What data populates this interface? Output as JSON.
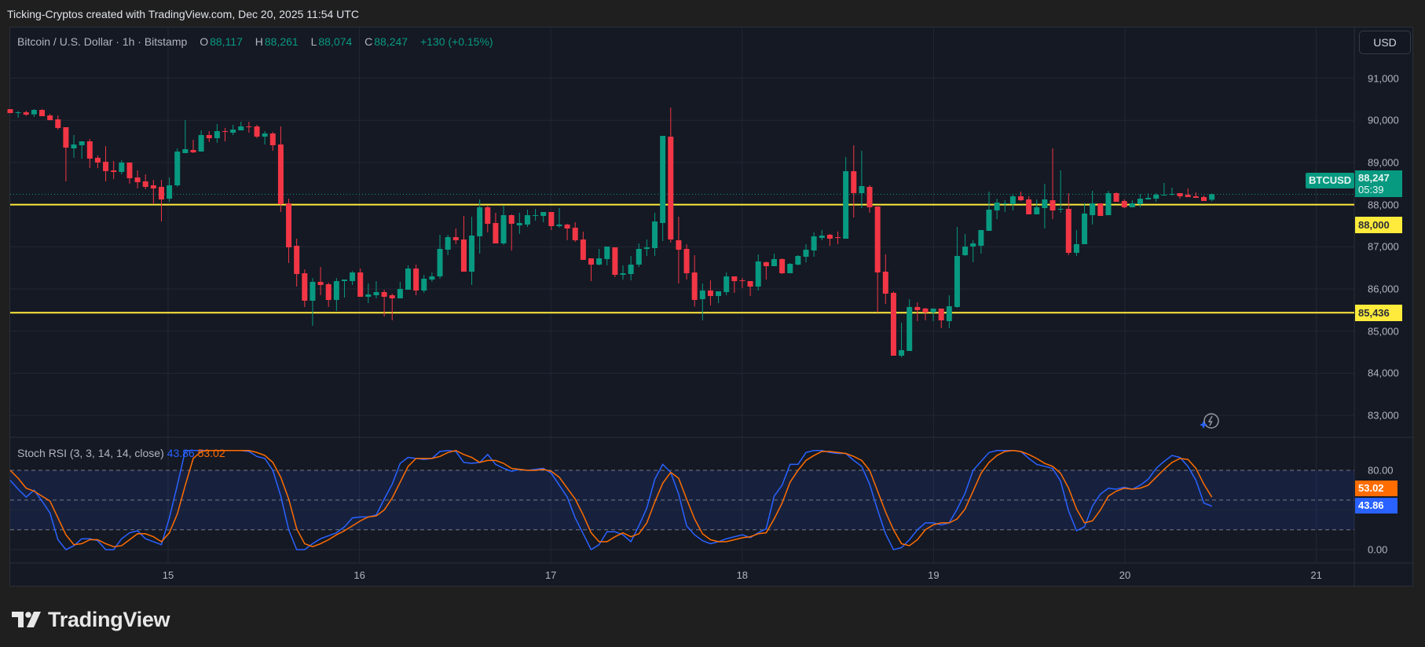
{
  "credit": "Ticking-Cryptos created with TradingView.com, Dec 20, 2025 11:54 UTC",
  "legend": {
    "symbol": "Bitcoin / U.S. Dollar · 1h · Bitstamp",
    "o_label": "O",
    "o": "88,117",
    "h_label": "H",
    "h": "88,261",
    "l_label": "L",
    "l": "88,074",
    "c_label": "C",
    "c": "88,247",
    "change": "+130 (+0.15%)"
  },
  "currency_button": "USD",
  "colors": {
    "up": "#089981",
    "down": "#f23645",
    "level": "#ffeb3b",
    "stoch_k": "#2962ff",
    "stoch_d": "#ff6d00"
  },
  "price_axis": {
    "ticks": [
      "91,000",
      "90,000",
      "89,000",
      "88,000",
      "87,000",
      "86,000",
      "85,000",
      "84,000",
      "83,000"
    ],
    "tick_values": [
      91000,
      90000,
      89000,
      88000,
      87000,
      86000,
      85000,
      84000,
      83000
    ]
  },
  "time_axis": {
    "ticks": [
      "15",
      "16",
      "17",
      "18",
      "19",
      "20",
      "21"
    ]
  },
  "last_price": {
    "symbol_tag": "BTCUSD",
    "price": "88,247",
    "countdown": "05:39",
    "value": 88247
  },
  "levels": [
    {
      "label": "88,000",
      "value": 88000
    },
    {
      "label": "85,436",
      "value": 85436
    }
  ],
  "stoch_rsi": {
    "title": "Stoch RSI (3, 3, 14, 14, close)",
    "k_value": "43.86",
    "d_value": "53.02",
    "axis_ticks": [
      "80.00",
      "0.00"
    ],
    "bands": [
      80,
      50,
      20
    ]
  },
  "watermark": "TradingView",
  "icons": {
    "bolt": "lightning-bolt-icon",
    "logo": "tradingview-logo-icon"
  },
  "chart_data": {
    "type": "candlestick",
    "interval": "1h",
    "ylim": [
      82600,
      91800
    ],
    "candles_ohlc": [
      [
        90264,
        90264,
        90171,
        90171
      ],
      [
        90184,
        90221,
        90060,
        90190
      ],
      [
        90190,
        90227,
        90103,
        90134
      ],
      [
        90140,
        90264,
        90078,
        90246
      ],
      [
        90246,
        90264,
        90097,
        90097
      ],
      [
        90115,
        90152,
        90003,
        90003
      ],
      [
        90022,
        90115,
        89780,
        89817
      ],
      [
        89836,
        89836,
        88551,
        89352
      ],
      [
        89333,
        89650,
        89110,
        89426
      ],
      [
        89408,
        89501,
        89091,
        89501
      ],
      [
        89501,
        89557,
        88868,
        89091
      ],
      [
        89110,
        89166,
        88868,
        88998
      ],
      [
        89017,
        89389,
        88551,
        88793
      ],
      [
        88812,
        89035,
        88607,
        88775
      ],
      [
        88775,
        89054,
        88719,
        88998
      ],
      [
        88998,
        88998,
        88495,
        88626
      ],
      [
        88644,
        88812,
        88384,
        88532
      ],
      [
        88551,
        88719,
        88365,
        88421
      ],
      [
        88458,
        88588,
        88011,
        88384
      ],
      [
        88421,
        88588,
        87601,
        88123
      ],
      [
        88141,
        88644,
        88067,
        88458
      ],
      [
        88458,
        89333,
        88421,
        89259
      ],
      [
        89222,
        90004,
        89222,
        89315
      ],
      [
        89296,
        89538,
        89222,
        89240
      ],
      [
        89259,
        89761,
        89259,
        89650
      ],
      [
        89650,
        89743,
        89482,
        89575
      ],
      [
        89575,
        89910,
        89464,
        89743
      ],
      [
        89743,
        89817,
        89501,
        89724
      ],
      [
        89706,
        89892,
        89650,
        89780
      ],
      [
        89761,
        89966,
        89761,
        89854
      ],
      [
        89854,
        89966,
        89706,
        89836
      ],
      [
        89854,
        89892,
        89575,
        89612
      ],
      [
        89612,
        89743,
        89426,
        89687
      ],
      [
        89687,
        89724,
        89277,
        89408
      ],
      [
        89426,
        89854,
        87825,
        88011
      ],
      [
        88030,
        88141,
        86615,
        86987
      ],
      [
        87024,
        87192,
        86056,
        86354
      ],
      [
        86372,
        86465,
        85572,
        85721
      ],
      [
        85721,
        86261,
        85125,
        86168
      ],
      [
        86168,
        86521,
        85851,
        86093
      ],
      [
        86112,
        86149,
        85572,
        85739
      ],
      [
        85739,
        86261,
        85479,
        86186
      ],
      [
        86186,
        86223,
        85795,
        86223
      ],
      [
        86186,
        86428,
        86093,
        86391
      ],
      [
        86391,
        86484,
        85814,
        85814
      ],
      [
        85814,
        86130,
        85665,
        85870
      ],
      [
        85851,
        86186,
        85777,
        85926
      ],
      [
        85926,
        85981,
        85348,
        85814
      ],
      [
        85851,
        85888,
        85255,
        85777
      ],
      [
        85777,
        86168,
        85777,
        85999
      ],
      [
        85981,
        86559,
        85981,
        86484
      ],
      [
        86484,
        86577,
        85851,
        85963
      ],
      [
        85963,
        86335,
        85907,
        86242
      ],
      [
        86223,
        86391,
        86168,
        86298
      ],
      [
        86298,
        87285,
        86242,
        86950
      ],
      [
        86931,
        87285,
        86801,
        87229
      ],
      [
        87229,
        87434,
        87062,
        87155
      ],
      [
        87173,
        87732,
        86410,
        86410
      ],
      [
        86410,
        87713,
        86093,
        87266
      ],
      [
        87248,
        88123,
        86838,
        87937
      ],
      [
        87937,
        87974,
        87341,
        87546
      ],
      [
        87564,
        87806,
        87080,
        87080
      ],
      [
        87080,
        87974,
        87043,
        87750
      ],
      [
        87750,
        87769,
        86912,
        87546
      ],
      [
        87508,
        87806,
        87304,
        87564
      ],
      [
        87527,
        87881,
        87471,
        87750
      ],
      [
        87732,
        87900,
        87620,
        87750
      ],
      [
        87732,
        87825,
        87583,
        87825
      ],
      [
        87825,
        87825,
        87397,
        87490
      ],
      [
        87490,
        87918,
        87453,
        87527
      ],
      [
        87527,
        87546,
        87155,
        87434
      ],
      [
        87453,
        87583,
        87117,
        87155
      ],
      [
        87173,
        87360,
        86689,
        86689
      ],
      [
        86726,
        86726,
        86186,
        86577
      ],
      [
        86577,
        86950,
        86559,
        86726
      ],
      [
        86708,
        87006,
        86559,
        87006
      ],
      [
        86987,
        86987,
        86280,
        86335
      ],
      [
        86335,
        86559,
        86223,
        86372
      ],
      [
        86354,
        86782,
        86205,
        86577
      ],
      [
        86577,
        87080,
        86521,
        86950
      ],
      [
        86950,
        87173,
        86782,
        86987
      ],
      [
        86968,
        87806,
        86782,
        87601
      ],
      [
        87564,
        89631,
        87136,
        89631
      ],
      [
        89612,
        90301,
        87099,
        87173
      ],
      [
        87155,
        87713,
        86130,
        86931
      ],
      [
        86950,
        87062,
        86223,
        86372
      ],
      [
        86391,
        86801,
        85584,
        85739
      ],
      [
        85758,
        86130,
        85255,
        85963
      ],
      [
        85963,
        86205,
        85609,
        85833
      ],
      [
        85833,
        85944,
        85665,
        85944
      ],
      [
        85926,
        86391,
        85851,
        86298
      ],
      [
        86298,
        86298,
        85907,
        86186
      ],
      [
        86205,
        86261,
        86019,
        86186
      ],
      [
        86186,
        86186,
        85833,
        86056
      ],
      [
        86056,
        86820,
        85963,
        86652
      ],
      [
        86634,
        86652,
        86223,
        86540
      ],
      [
        86540,
        86838,
        86540,
        86708
      ],
      [
        86708,
        86726,
        86354,
        86372
      ],
      [
        86372,
        86615,
        86372,
        86596
      ],
      [
        86577,
        86801,
        86559,
        86782
      ],
      [
        86763,
        87062,
        86633,
        86931
      ],
      [
        86913,
        87341,
        86764,
        87248
      ],
      [
        87210,
        87397,
        87155,
        87266
      ],
      [
        87285,
        87304,
        87024,
        87192
      ],
      [
        87229,
        87360,
        87062,
        87210
      ],
      [
        87192,
        89128,
        87192,
        88793
      ],
      [
        88793,
        89408,
        87695,
        88272
      ],
      [
        88272,
        89277,
        87918,
        88440
      ],
      [
        88421,
        88458,
        87806,
        87937
      ],
      [
        87955,
        87955,
        85441,
        86391
      ],
      [
        86410,
        86820,
        85646,
        85888
      ],
      [
        85907,
        85944,
        84417,
        84417
      ],
      [
        84417,
        85199,
        84380,
        84548
      ],
      [
        84529,
        85758,
        84529,
        85572
      ],
      [
        85572,
        85683,
        85237,
        85497
      ],
      [
        85535,
        85553,
        85255,
        85441
      ],
      [
        85441,
        85535,
        85237,
        85535
      ],
      [
        85535,
        85535,
        85069,
        85255
      ],
      [
        85237,
        85851,
        85069,
        85590
      ],
      [
        85572,
        87471,
        85553,
        86782
      ],
      [
        86801,
        87304,
        86782,
        87006
      ],
      [
        87006,
        87155,
        86633,
        87080
      ],
      [
        87024,
        87397,
        86838,
        87397
      ],
      [
        87378,
        88309,
        87378,
        87881
      ],
      [
        87862,
        88141,
        87657,
        88048
      ],
      [
        88011,
        88104,
        87825,
        88030
      ],
      [
        88011,
        88253,
        87862,
        88197
      ],
      [
        88197,
        88309,
        88086,
        88104
      ],
      [
        88123,
        88197,
        87769,
        87769
      ],
      [
        87769,
        88123,
        87769,
        87937
      ],
      [
        87918,
        88495,
        87434,
        88123
      ],
      [
        88104,
        89333,
        87657,
        87862
      ],
      [
        87881,
        88812,
        87806,
        87900
      ],
      [
        87900,
        88272,
        86801,
        86857
      ],
      [
        86857,
        87397,
        86782,
        87062
      ],
      [
        87062,
        88030,
        87062,
        87788
      ],
      [
        87750,
        88328,
        87527,
        88030
      ],
      [
        88030,
        88030,
        87732,
        87732
      ],
      [
        87750,
        88328,
        87750,
        88272
      ],
      [
        88272,
        88291,
        88067,
        88067
      ],
      [
        88086,
        88123,
        87918,
        87937
      ],
      [
        87937,
        88104,
        87937,
        88030
      ],
      [
        88011,
        88253,
        87937,
        88141
      ],
      [
        88123,
        88272,
        88123,
        88160
      ],
      [
        88141,
        88272,
        88067,
        88235
      ],
      [
        88216,
        88514,
        88216,
        88235
      ],
      [
        88235,
        88402,
        88216,
        88253
      ],
      [
        88272,
        88272,
        88141,
        88197
      ],
      [
        88235,
        88384,
        88179,
        88179
      ],
      [
        88197,
        88291,
        88160,
        88160
      ],
      [
        88179,
        88216,
        88086,
        88086
      ],
      [
        88117,
        88261,
        88074,
        88247
      ]
    ],
    "stoch_k": [
      70,
      61,
      53,
      60,
      49,
      37,
      10,
      0,
      4,
      11,
      11,
      9,
      0,
      0,
      11,
      17,
      19,
      11,
      8,
      5,
      32,
      65,
      100,
      100,
      100,
      100,
      100,
      100,
      100,
      100,
      99,
      94,
      92,
      80,
      54,
      20,
      0,
      0,
      6,
      11,
      14,
      17,
      23,
      32,
      33,
      33,
      35,
      51,
      66,
      87,
      93,
      92,
      91,
      92,
      99,
      100,
      99,
      88,
      87,
      88,
      96,
      86,
      82,
      79,
      81,
      80,
      81,
      82,
      77,
      65,
      53,
      32,
      16,
      0,
      5,
      18,
      18,
      15,
      8,
      24,
      42,
      71,
      86,
      78,
      56,
      24,
      15,
      9,
      6,
      8,
      11,
      13,
      15,
      12,
      17,
      21,
      54,
      65,
      86,
      86,
      98,
      100,
      100,
      98,
      97,
      97,
      90,
      84,
      66,
      40,
      16,
      0,
      2,
      10,
      20,
      27,
      27,
      25,
      27,
      41,
      57,
      80,
      89,
      98,
      100,
      100,
      100,
      99,
      92,
      86,
      84,
      82,
      69,
      39,
      19,
      23,
      44,
      56,
      62,
      61,
      63,
      61,
      65,
      71,
      82,
      89,
      95,
      93,
      84,
      70,
      47,
      43.86
    ],
    "stoch_d": [
      80,
      72,
      62,
      59,
      54,
      49,
      32,
      15,
      5,
      6,
      10,
      10,
      6,
      3,
      4,
      10,
      16,
      16,
      13,
      8,
      17,
      36,
      65,
      92,
      99,
      100,
      100,
      100,
      100,
      100,
      100,
      98,
      95,
      88,
      73,
      51,
      21,
      6,
      3,
      6,
      10,
      15,
      19,
      24,
      29,
      33,
      34,
      40,
      52,
      68,
      84,
      92,
      92,
      92,
      94,
      98,
      100,
      96,
      93,
      88,
      90,
      90,
      87,
      82,
      81,
      80,
      80,
      81,
      79,
      73,
      62,
      51,
      35,
      17,
      8,
      8,
      13,
      17,
      13,
      16,
      27,
      48,
      67,
      78,
      72,
      51,
      31,
      16,
      10,
      8,
      8,
      10,
      12,
      13,
      16,
      17,
      31,
      47,
      68,
      80,
      90,
      95,
      99,
      99,
      98,
      97,
      94,
      90,
      80,
      59,
      38,
      20,
      6,
      4,
      10,
      20,
      25,
      27,
      27,
      31,
      41,
      59,
      77,
      88,
      95,
      99,
      100,
      99,
      96,
      92,
      87,
      84,
      77,
      62,
      41,
      27,
      29,
      40,
      54,
      59,
      62,
      61,
      62,
      65,
      73,
      81,
      88,
      92,
      91,
      82,
      66,
      53.02
    ],
    "stoch_ylim": [
      0,
      100
    ]
  }
}
